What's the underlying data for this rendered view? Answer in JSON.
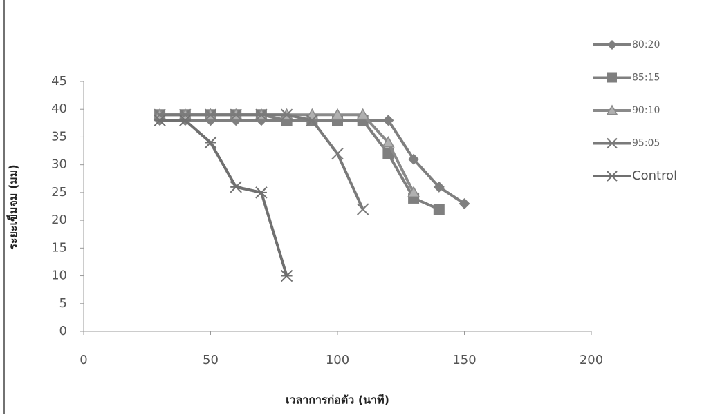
{
  "chart_data": {
    "type": "line",
    "x_label": "เวลาการก่อตัว (นาที)",
    "y_label": "ระยะเข็มจม (มม)",
    "xlim": [
      0,
      200
    ],
    "xticks": [
      0,
      50,
      100,
      150,
      200
    ],
    "ylim": [
      0,
      45
    ],
    "yticks": [
      0,
      5,
      10,
      15,
      20,
      25,
      30,
      35,
      40,
      45
    ],
    "legend": "right",
    "series": [
      {
        "name": "80:20",
        "color": "#7f7f7f",
        "marker": "diamond",
        "x": [
          30,
          40,
          50,
          60,
          70,
          80,
          90,
          100,
          110,
          120,
          130,
          140,
          150
        ],
        "values": [
          38,
          38,
          38,
          38,
          38,
          38,
          38,
          38,
          38,
          38,
          31,
          26,
          23
        ]
      },
      {
        "name": "85:15",
        "color": "#7f7f7f",
        "marker": "square",
        "x": [
          30,
          40,
          50,
          60,
          70,
          80,
          90,
          100,
          110,
          120,
          130,
          140
        ],
        "values": [
          39,
          39,
          39,
          39,
          39,
          38,
          38,
          38,
          38,
          32,
          24,
          22
        ]
      },
      {
        "name": "90:10",
        "color": "#8a8a8a",
        "marker": "triangle",
        "x": [
          30,
          40,
          50,
          60,
          70,
          80,
          90,
          100,
          110,
          120,
          130
        ],
        "values": [
          39,
          39,
          39,
          39,
          39,
          39,
          39,
          39,
          39,
          34,
          25
        ]
      },
      {
        "name": "95:05",
        "color": "#7a7a7a",
        "marker": "x",
        "x": [
          30,
          40,
          50,
          60,
          70,
          80,
          90,
          100,
          110
        ],
        "values": [
          39,
          39,
          39,
          39,
          39,
          39,
          38,
          32,
          22
        ]
      },
      {
        "name": "Control",
        "color": "#707070",
        "marker": "asterisk",
        "x": [
          30,
          40,
          50,
          60,
          70,
          80
        ],
        "values": [
          38,
          38,
          34,
          26,
          25,
          10
        ]
      }
    ]
  }
}
